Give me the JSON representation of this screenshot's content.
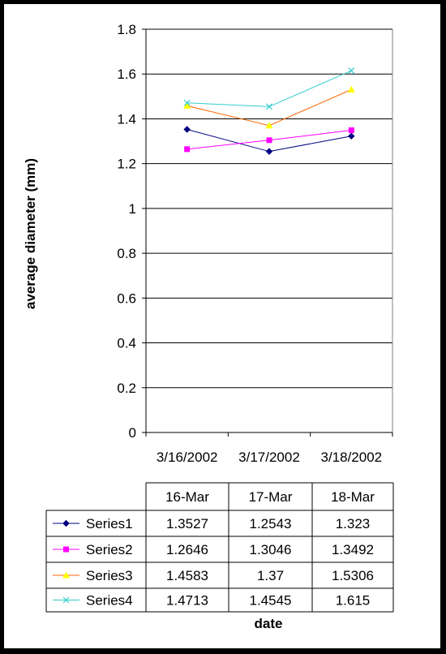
{
  "chart_data": {
    "type": "line",
    "title": "",
    "xlabel": "date",
    "ylabel": "average diameter (mm)",
    "ylim": [
      0,
      1.8
    ],
    "yticks": [
      "0",
      "0.2",
      "0.4",
      "0.6",
      "0.8",
      "1",
      "1.2",
      "1.4",
      "1.6",
      "1.8"
    ],
    "categories": [
      "3/16/2002",
      "3/17/2002",
      "3/18/2002"
    ],
    "table_headers": [
      "16-Mar",
      "17-Mar",
      "18-Mar"
    ],
    "grid": "horizontal",
    "legend": "data table (below chart)",
    "series": [
      {
        "name": "Series1",
        "values": [
          1.3527,
          1.2543,
          1.323
        ],
        "display": [
          "1.3527",
          "1.2543",
          "1.323"
        ],
        "color": "#000080",
        "marker": "diamond"
      },
      {
        "name": "Series2",
        "values": [
          1.2646,
          1.3046,
          1.3492
        ],
        "display": [
          "1.2646",
          "1.3046",
          "1.3492"
        ],
        "color": "#FF00FF",
        "marker": "square"
      },
      {
        "name": "Series3",
        "values": [
          1.4583,
          1.37,
          1.5306
        ],
        "display": [
          "1.4583",
          "1.37",
          "1.5306"
        ],
        "color": "#FF6600",
        "line_color": "#FF6600",
        "marker_color": "#FFFF00",
        "marker": "triangle"
      },
      {
        "name": "Series4",
        "values": [
          1.4713,
          1.4545,
          1.615
        ],
        "display": [
          "1.4713",
          "1.4545",
          "1.615"
        ],
        "color": "#33CCCC",
        "marker": "x"
      }
    ]
  }
}
